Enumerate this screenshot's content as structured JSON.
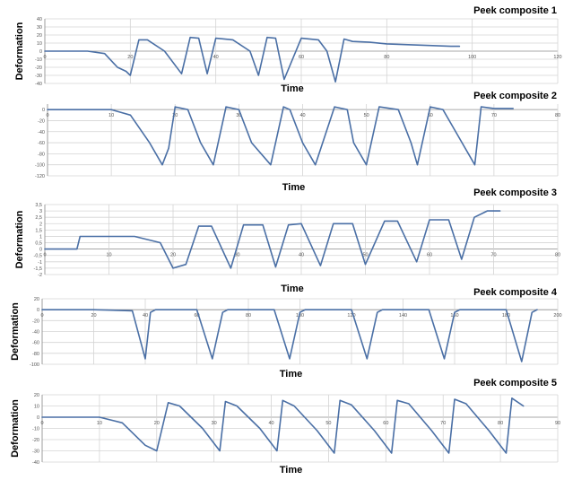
{
  "accent_color": "#4a6fa5",
  "chart_data": [
    {
      "type": "line",
      "title": "Peek composite 1",
      "xlabel": "Time",
      "ylabel": "Deformation",
      "xlim": [
        0,
        120
      ],
      "ylim": [
        -40,
        40
      ],
      "xticks": [
        0,
        20,
        40,
        60,
        80,
        100,
        120
      ],
      "yticks": [
        -40,
        -30,
        -20,
        -10,
        0,
        10,
        20,
        30,
        40
      ],
      "grid": true,
      "x": [
        0,
        5,
        10,
        14,
        17,
        19,
        20,
        22,
        24,
        28,
        32,
        34,
        36,
        38,
        40,
        44,
        48,
        50,
        52,
        54,
        56,
        60,
        64,
        66,
        68,
        70,
        72,
        76,
        80,
        85,
        90,
        95,
        97
      ],
      "y": [
        0,
        0,
        0,
        -3,
        -20,
        -25,
        -30,
        14,
        14,
        0,
        -28,
        17,
        16,
        -28,
        16,
        14,
        0,
        -30,
        17,
        16,
        -35,
        16,
        14,
        0,
        -38,
        15,
        12,
        11,
        9,
        8,
        7,
        6,
        6
      ]
    },
    {
      "type": "line",
      "title": "Peek composite 2",
      "xlabel": "Time",
      "ylabel": "",
      "xlim": [
        0,
        80
      ],
      "ylim": [
        -120,
        10
      ],
      "xticks": [
        0,
        10,
        20,
        30,
        40,
        50,
        60,
        70,
        80
      ],
      "yticks": [
        0,
        -20,
        -40,
        -60,
        -80,
        -100,
        -120
      ],
      "grid": true,
      "x": [
        0,
        5,
        10,
        13,
        16,
        18,
        19,
        20,
        22,
        24,
        26,
        28,
        30,
        32,
        35,
        37,
        38,
        40,
        42,
        45,
        47,
        48,
        50,
        52,
        55,
        57,
        58,
        60,
        62,
        65,
        67,
        68,
        70,
        73
      ],
      "y": [
        0,
        0,
        0,
        -10,
        -60,
        -100,
        -70,
        5,
        0,
        -60,
        -100,
        5,
        0,
        -60,
        -100,
        5,
        0,
        -60,
        -100,
        5,
        0,
        -60,
        -100,
        5,
        0,
        -60,
        -100,
        5,
        0,
        -60,
        -100,
        5,
        2,
        2
      ]
    },
    {
      "type": "line",
      "title": "Peek composite 3",
      "xlabel": "Time",
      "ylabel": "Deformation",
      "xlim": [
        0,
        80
      ],
      "ylim": [
        -2,
        3.5
      ],
      "xticks": [
        0,
        10,
        20,
        30,
        40,
        50,
        60,
        70,
        80
      ],
      "yticks": [
        3.5,
        3,
        2.5,
        2,
        1.5,
        1,
        0.5,
        0,
        -0.5,
        -1,
        -1.5,
        -2
      ],
      "grid": true,
      "x": [
        0,
        5,
        5.5,
        14,
        18,
        20,
        22,
        24,
        26,
        29,
        31,
        34,
        36,
        38,
        40,
        43,
        45,
        48,
        50,
        53,
        55,
        58,
        60,
        63,
        65,
        67,
        69,
        71
      ],
      "y": [
        0,
        0,
        1,
        1,
        0.5,
        -1.5,
        -1.2,
        1.8,
        1.8,
        -1.5,
        1.9,
        1.9,
        -1.4,
        1.9,
        2,
        -1.3,
        2,
        2,
        -1.2,
        2.2,
        2.2,
        -1.0,
        2.3,
        2.3,
        -0.8,
        2.5,
        3,
        3
      ]
    },
    {
      "type": "line",
      "title": "Peek composite 4",
      "xlabel": "Time",
      "ylabel": "Deformation",
      "xlim": [
        0,
        200
      ],
      "ylim": [
        -100,
        20
      ],
      "xticks": [
        0,
        20,
        40,
        60,
        80,
        100,
        120,
        140,
        160,
        180,
        200
      ],
      "yticks": [
        20,
        0,
        -20,
        -40,
        -60,
        -80,
        -100
      ],
      "grid": true,
      "x": [
        0,
        20,
        35,
        40,
        42,
        44,
        60,
        66,
        70,
        72,
        90,
        96,
        100,
        102,
        120,
        126,
        130,
        132,
        150,
        156,
        160,
        162,
        180,
        186,
        190,
        192
      ],
      "y": [
        0,
        0,
        -2,
        -90,
        -5,
        0,
        0,
        -90,
        -5,
        0,
        0,
        -90,
        -5,
        0,
        0,
        -90,
        -5,
        0,
        0,
        -90,
        -5,
        0,
        0,
        -95,
        -5,
        0
      ]
    },
    {
      "type": "line",
      "title": "Peek composite 5",
      "xlabel": "Time",
      "ylabel": "Deformation",
      "xlim": [
        0,
        90
      ],
      "ylim": [
        -40,
        20
      ],
      "xticks": [
        0,
        10,
        20,
        30,
        40,
        50,
        60,
        70,
        80,
        90
      ],
      "yticks": [
        20,
        10,
        0,
        -10,
        -20,
        -30,
        -40
      ],
      "grid": true,
      "x": [
        0,
        5,
        10,
        14,
        18,
        20,
        22,
        24,
        28,
        31,
        32,
        34,
        38,
        41,
        42,
        44,
        48,
        51,
        52,
        54,
        58,
        61,
        62,
        64,
        68,
        71,
        72,
        74,
        78,
        81,
        82,
        84
      ],
      "y": [
        0,
        0,
        0,
        -5,
        -25,
        -30,
        13,
        10,
        -10,
        -30,
        14,
        10,
        -10,
        -30,
        15,
        10,
        -12,
        -32,
        15,
        11,
        -12,
        -32,
        15,
        12,
        -12,
        -32,
        16,
        12,
        -12,
        -32,
        17,
        10
      ]
    }
  ]
}
